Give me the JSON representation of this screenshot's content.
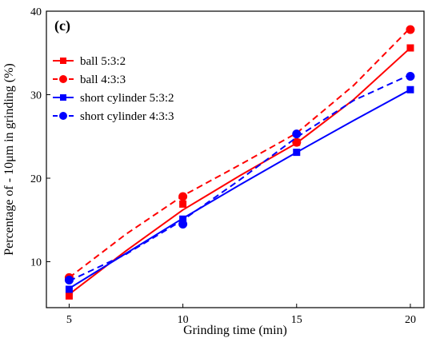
{
  "chart_data": {
    "type": "line",
    "panel_label": "(c)",
    "title": "",
    "xlabel": "Grinding time (min)",
    "ylabel": "Percentage of - 10μm  in grinding (%)",
    "xlim": [
      4.0,
      20.6
    ],
    "ylim": [
      4.5,
      40
    ],
    "x_ticks": [
      5,
      10,
      15,
      20
    ],
    "y_ticks": [
      10,
      20,
      30,
      40
    ],
    "grid": false,
    "legend_position": "top-left",
    "series": [
      {
        "name": "ball 5:3:2",
        "color": "#ff0000",
        "line_style": "solid",
        "marker": "square",
        "points": {
          "x": [
            5,
            10,
            15,
            20
          ],
          "y": [
            5.9,
            16.9,
            24.3,
            35.6
          ]
        },
        "fit_curve": {
          "x": [
            5,
            7.5,
            10,
            12.5,
            15,
            17.5,
            20
          ],
          "y": [
            6.1,
            11.3,
            16.2,
            20.3,
            24.2,
            29.4,
            35.6
          ]
        }
      },
      {
        "name": "ball 4:3:3",
        "color": "#ff0000",
        "line_style": "dashed",
        "marker": "circle",
        "points": {
          "x": [
            5,
            10,
            15,
            20
          ],
          "y": [
            8.1,
            17.8,
            24.3,
            37.8
          ]
        },
        "fit_curve": {
          "x": [
            5,
            7.5,
            10,
            12.5,
            15,
            17.5,
            20
          ],
          "y": [
            8.1,
            13.3,
            17.9,
            21.6,
            25.4,
            31.1,
            38.0
          ]
        }
      },
      {
        "name": "short cylinder 5:3:2",
        "color": "#0000ff",
        "line_style": "solid",
        "marker": "square",
        "points": {
          "x": [
            5,
            10,
            15,
            20
          ],
          "y": [
            6.7,
            15.1,
            23.1,
            30.6
          ]
        },
        "fit_curve": {
          "x": [
            5,
            7.5,
            10,
            12.5,
            15,
            17.5,
            20
          ],
          "y": [
            6.8,
            11.0,
            15.2,
            19.2,
            23.1,
            26.9,
            30.6
          ]
        }
      },
      {
        "name": "short cylinder 4:3:3",
        "color": "#0000ff",
        "line_style": "dashed",
        "marker": "circle",
        "points": {
          "x": [
            5,
            10,
            15,
            20
          ],
          "y": [
            7.8,
            14.5,
            25.3,
            32.2
          ]
        },
        "fit_curve": {
          "x": [
            5,
            7.5,
            10,
            12.5,
            15,
            17.5,
            20
          ],
          "y": [
            7.7,
            10.9,
            15.0,
            19.8,
            24.9,
            29.3,
            32.4
          ]
        }
      }
    ]
  }
}
